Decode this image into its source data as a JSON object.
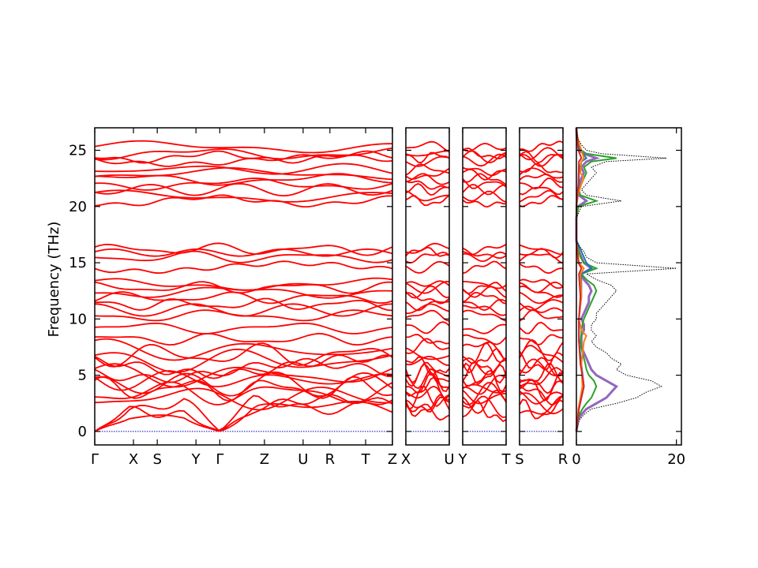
{
  "chart_data": [
    {
      "type": "line",
      "title": "",
      "xlabel": "",
      "ylabel": "Frequency (THz)",
      "ylim": [
        -1.2,
        27
      ],
      "yticks": [
        0,
        5,
        10,
        15,
        20,
        25
      ],
      "grid": false,
      "panels": [
        {
          "segments": [
            {
              "from": "Γ",
              "to": "X"
            },
            {
              "from": "X",
              "to": "S"
            },
            {
              "from": "S",
              "to": "Y"
            },
            {
              "from": "Y",
              "to": "Γ"
            },
            {
              "from": "Γ",
              "to": "Z"
            },
            {
              "from": "Z",
              "to": "U"
            },
            {
              "from": "U",
              "to": "R"
            },
            {
              "from": "R",
              "to": "T"
            },
            {
              "from": "T",
              "to": "Z"
            }
          ],
          "tick_labels": [
            "Γ",
            "X",
            "S",
            "Y",
            "Γ",
            "Z",
            "U",
            "R",
            "T",
            "Z"
          ],
          "tick_positions": [
            0,
            0.13,
            0.21,
            0.34,
            0.42,
            0.57,
            0.7,
            0.79,
            0.91,
            1.0
          ]
        },
        {
          "tick_labels": [
            "X",
            "U"
          ],
          "tick_positions": [
            0,
            1
          ]
        },
        {
          "tick_labels": [
            "Y",
            "T"
          ],
          "tick_positions": [
            0,
            1
          ]
        },
        {
          "tick_labels": [
            "S",
            "R"
          ],
          "tick_positions": [
            0,
            1
          ]
        }
      ],
      "series": [
        {
          "color": "#ff0000",
          "band_levels_thz": [
            1.8,
            2.2,
            2.6,
            3.0,
            3.4,
            3.8,
            4.2,
            4.6,
            5.0,
            5.4,
            5.8,
            6.3,
            6.8,
            7.2,
            8.2,
            9.2,
            10.3,
            10.8,
            11.3,
            11.9,
            12.4,
            12.8,
            13.1,
            14.6,
            15.5,
            15.9,
            16.2,
            20.5,
            20.9,
            21.5,
            22.0,
            22.4,
            22.9,
            23.3,
            24.1,
            24.4,
            24.7,
            25.3
          ]
        },
        {
          "color": "#0000cc",
          "style": "dotted",
          "y_constant": 0
        }
      ]
    },
    {
      "type": "area",
      "title": "",
      "xlabel": "",
      "ylabel": "",
      "xlim": [
        0,
        21
      ],
      "xticks": [
        0,
        20
      ],
      "ylim": [
        -1.2,
        27
      ],
      "grid": false,
      "series": [
        {
          "color": "#000000",
          "style": "dotted",
          "freq": [
            0,
            1,
            1.5,
            2,
            2.5,
            3,
            3.5,
            4,
            4.5,
            5,
            5.5,
            6,
            6.5,
            7,
            7.5,
            8,
            8.5,
            9,
            9.5,
            10,
            10.5,
            11,
            11.5,
            12,
            12.5,
            13,
            13.5,
            14,
            14.5,
            15,
            15.5,
            16,
            16.5,
            17,
            19,
            20,
            20.5,
            21,
            21.5,
            22,
            22.5,
            23,
            23.5,
            24,
            24.3,
            24.7,
            25,
            25.5,
            26,
            27
          ],
          "dos": [
            0,
            0.6,
            1.5,
            3,
            8,
            12,
            14,
            17,
            15,
            10,
            8,
            9,
            7,
            6,
            4,
            3,
            4,
            3,
            3,
            4,
            4,
            5,
            6,
            7,
            8,
            7,
            4,
            2,
            20,
            4,
            2,
            1.5,
            0.5,
            0,
            0,
            1,
            9,
            2,
            1,
            2,
            3,
            4,
            3,
            6,
            18,
            5,
            2,
            1,
            0.3,
            0
          ]
        },
        {
          "color": "#9467bd",
          "freq": [
            0,
            1,
            1.5,
            2,
            2.5,
            3,
            3.5,
            4,
            4.5,
            5,
            5.5,
            6,
            6.5,
            7,
            7.5,
            8,
            8.5,
            9,
            9.5,
            10,
            10.5,
            11,
            11.5,
            12,
            12.5,
            13,
            13.5,
            14,
            14.5,
            15,
            15.5,
            16,
            16.5,
            17,
            19,
            20,
            20.5,
            21,
            21.5,
            22,
            22.5,
            23,
            23.5,
            24,
            24.3,
            24.7,
            25,
            25.5,
            26,
            27
          ],
          "dos": [
            0,
            0.3,
            1,
            2,
            4,
            6,
            7,
            8,
            6,
            4,
            3,
            2.5,
            2,
            1.5,
            1,
            1,
            1,
            1.5,
            1.5,
            1,
            1.5,
            2,
            2.5,
            2.5,
            3,
            2.5,
            1.5,
            1,
            3,
            1.5,
            1,
            0.5,
            0.2,
            0,
            0,
            0.3,
            2,
            0.5,
            0.3,
            0.6,
            1,
            1.5,
            1,
            2,
            4,
            1.5,
            0.5,
            0.3,
            0.1,
            0
          ]
        },
        {
          "color": "#2ca02c",
          "freq": [
            0,
            1,
            1.5,
            2,
            2.5,
            3,
            3.5,
            4,
            4.5,
            5,
            5.5,
            6,
            6.5,
            7,
            7.5,
            8,
            8.5,
            9,
            9.5,
            10,
            10.5,
            11,
            11.5,
            12,
            12.5,
            13,
            13.5,
            14,
            14.5,
            15,
            15.5,
            16,
            16.5,
            17,
            19,
            20,
            20.5,
            21,
            21.5,
            22,
            22.5,
            23,
            23.5,
            24,
            24.3,
            24.7,
            25,
            25.5,
            26,
            27
          ],
          "dos": [
            0,
            0.2,
            0.6,
            1.2,
            2,
            3,
            3.5,
            4,
            3.5,
            2.5,
            2,
            1.8,
            1.5,
            1.2,
            1,
            0.8,
            1,
            1,
            1.2,
            1.5,
            2,
            2.5,
            3,
            3.5,
            4,
            3.5,
            2,
            1,
            4,
            1.5,
            0.8,
            0.5,
            0.2,
            0,
            0,
            0.4,
            4,
            0.8,
            0.5,
            1,
            1.5,
            2,
            1.5,
            3,
            8,
            2,
            1,
            0.5,
            0.2,
            0
          ]
        },
        {
          "color": "#1f77b4",
          "freq": [
            0,
            2,
            4,
            6,
            8,
            10,
            12,
            14,
            14.5,
            15,
            15.5,
            16,
            16.5,
            17,
            20,
            21,
            22,
            23,
            24,
            24.3,
            25,
            25.5,
            26,
            27
          ],
          "dos": [
            0,
            0.5,
            1.5,
            1,
            0.5,
            0.5,
            1,
            1,
            3,
            2,
            1.5,
            1,
            0.5,
            0,
            0,
            0.3,
            0.5,
            0.5,
            1,
            2,
            0.8,
            0.5,
            0.2,
            0
          ]
        },
        {
          "color": "#ff7f0e",
          "freq": [
            0,
            2,
            4,
            6,
            8,
            8.5,
            9,
            10,
            12,
            14,
            14.5,
            15,
            17,
            20,
            21,
            22,
            22.5,
            23,
            24,
            24.3,
            25,
            26,
            27
          ],
          "dos": [
            0,
            0.4,
            1.2,
            1,
            1.5,
            2,
            1,
            0.5,
            1,
            0.8,
            1.5,
            0.5,
            0,
            0,
            0.3,
            1,
            1.5,
            0.8,
            1,
            1.5,
            1,
            0.3,
            0
          ]
        },
        {
          "color": "#d62728",
          "freq": [
            0,
            2,
            3,
            4,
            5,
            6,
            8,
            10,
            12,
            14,
            14.5,
            15,
            17,
            20,
            21,
            22,
            24,
            24.3,
            25,
            26,
            27
          ],
          "dos": [
            0,
            0.5,
            1,
            1.5,
            1.2,
            0.8,
            0.5,
            0.5,
            0.8,
            0.5,
            1,
            0.4,
            0,
            0,
            0.2,
            0.4,
            0.5,
            1,
            0.4,
            0.2,
            0
          ]
        }
      ]
    }
  ]
}
